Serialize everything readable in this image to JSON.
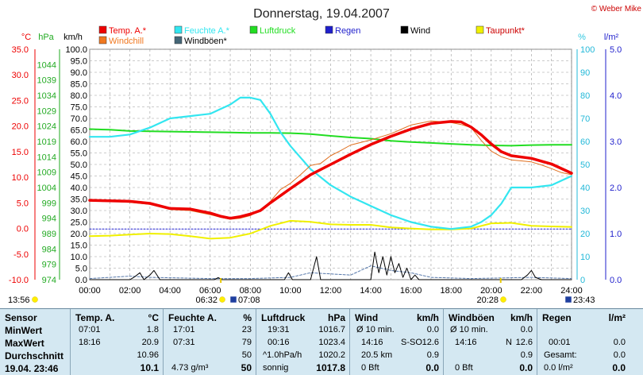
{
  "title": "Donnerstag, 19.04.2007",
  "copyright": "© Weber Mike",
  "legend": [
    {
      "label": "Temp. A.*",
      "color": "#ee0000"
    },
    {
      "label": "Feuchte A.*",
      "color": "#33e6f0"
    },
    {
      "label": "Luftdruck",
      "color": "#22dd22"
    },
    {
      "label": "Regen",
      "color": "#1f1fcc"
    },
    {
      "label": "Wind",
      "color": "#000000"
    },
    {
      "label": "Taupunkt*",
      "color": "#f0f000"
    },
    {
      "label": "Windchill",
      "color": "#f07820"
    },
    {
      "label": "Windböen*",
      "color": "#446677"
    }
  ],
  "axes": {
    "temp_unit": "°C",
    "hpa_unit": "hPa",
    "kmh_unit": "km/h",
    "pct_unit": "%",
    "rain_unit": "l/m²",
    "temp_ticks": [
      "35.0",
      "30.0",
      "25.0",
      "20.0",
      "15.0",
      "10.0",
      "5.0",
      "0.0",
      "-5.0",
      "-10.0"
    ],
    "hpa_ticks": [
      "1044",
      "1039",
      "1034",
      "1029",
      "1024",
      "1019",
      "1014",
      "1009",
      "1004",
      "999",
      "994",
      "989",
      "984",
      "979",
      "974"
    ],
    "kmh_ticks": [
      "100.0",
      "95.0",
      "90.0",
      "85.0",
      "80.0",
      "75.0",
      "70.0",
      "65.0",
      "60.0",
      "55.0",
      "50.0",
      "45.0",
      "40.0",
      "35.0",
      "30.0",
      "25.0",
      "20.0",
      "15.0",
      "10.0",
      "5.0",
      "0.0"
    ],
    "pct_ticks": [
      "100",
      "90",
      "80",
      "70",
      "60",
      "50",
      "40",
      "30",
      "20",
      "10",
      "0"
    ],
    "rain_ticks": [
      "5.0",
      "4.0",
      "3.0",
      "2.0",
      "1.0",
      "0.0"
    ],
    "x_ticks": [
      "00:00",
      "02:00",
      "04:00",
      "06:00",
      "08:00",
      "10:00",
      "12:00",
      "14:00",
      "16:00",
      "18:00",
      "20:00",
      "22:00",
      "24:00"
    ]
  },
  "sun": {
    "sunset_left": "13:56",
    "sunrise": "06:32",
    "moon_rise": "07:08",
    "sunset": "20:28",
    "moon_set": "23:43"
  },
  "chart_data": {
    "type": "line",
    "x_range": [
      0,
      24
    ],
    "ylim": {
      "kmh": [
        0,
        100
      ],
      "temp": [
        -10,
        35
      ],
      "hpa": [
        974,
        1049
      ],
      "pct": [
        0,
        100
      ],
      "rain": [
        0,
        5
      ]
    },
    "series": [
      {
        "name": "Temp. A.*",
        "axis": "temp",
        "x": [
          0,
          1,
          2,
          3,
          4,
          5,
          6,
          6.5,
          7,
          7.5,
          8,
          8.5,
          9,
          10,
          11,
          12,
          13,
          14,
          15,
          16,
          17,
          18,
          18.5,
          19,
          19.5,
          20,
          20.5,
          21,
          22,
          23,
          24
        ],
        "y": [
          5.5,
          5.4,
          5.3,
          4.9,
          3.9,
          3.8,
          3.0,
          2.4,
          2.0,
          2.3,
          2.8,
          3.5,
          5.0,
          7.8,
          10.5,
          12.5,
          14.5,
          16.4,
          18.0,
          19.4,
          20.5,
          20.9,
          20.8,
          19.8,
          18.3,
          16.5,
          15.0,
          14.2,
          13.7,
          12.6,
          10.8
        ]
      },
      {
        "name": "Windchill",
        "axis": "temp",
        "x": [
          0,
          1,
          2,
          3,
          4,
          5,
          6,
          6.5,
          7,
          7.5,
          8,
          8.5,
          9,
          9.5,
          10,
          10.5,
          11,
          11.5,
          12,
          12.5,
          13,
          14,
          15,
          16,
          17,
          18,
          18.5,
          19,
          19.5,
          20,
          20.5,
          21,
          22,
          22.5,
          23,
          23.5,
          24
        ],
        "y": [
          5.5,
          5.3,
          5.1,
          4.7,
          3.7,
          3.5,
          2.7,
          2.2,
          1.8,
          2.0,
          2.5,
          3.6,
          5.3,
          7.6,
          8.8,
          10.5,
          12.3,
          12.7,
          14.2,
          15.2,
          16.3,
          17.3,
          18.5,
          20.2,
          21.0,
          20.7,
          20.3,
          19.7,
          17.2,
          15.1,
          14.0,
          13.4,
          13.0,
          12.4,
          11.7,
          10.9,
          10.5
        ]
      },
      {
        "name": "Feuchte A.*",
        "axis": "pct",
        "x": [
          0,
          1,
          2,
          3,
          4,
          5,
          6,
          6.5,
          7,
          7.5,
          8,
          8.5,
          9,
          9.5,
          10,
          11,
          12,
          13,
          14,
          15,
          16,
          17,
          18,
          19,
          19.5,
          20,
          20.5,
          21,
          22,
          23,
          24
        ],
        "y": [
          62,
          62,
          63,
          66,
          70,
          71,
          72,
          74,
          76,
          79,
          79,
          78,
          72,
          64,
          58,
          48,
          41,
          36,
          32,
          28,
          25,
          23,
          22,
          23,
          25,
          28,
          33,
          40,
          40,
          41,
          45
        ]
      },
      {
        "name": "Luftdruck",
        "axis": "hpa",
        "x": [
          0,
          1,
          2,
          3,
          4,
          5,
          6,
          7,
          8,
          9,
          10,
          11,
          12,
          13,
          14,
          15,
          16,
          17,
          18,
          19,
          20,
          21,
          22,
          23,
          24
        ],
        "y": [
          1023.0,
          1022.8,
          1022.4,
          1022.3,
          1022.2,
          1022.1,
          1022.0,
          1021.9,
          1021.8,
          1021.8,
          1021.7,
          1021.4,
          1020.8,
          1020.3,
          1019.9,
          1019.2,
          1018.8,
          1018.5,
          1018.2,
          1017.9,
          1017.7,
          1017.6,
          1017.8,
          1017.9,
          1017.9
        ]
      },
      {
        "name": "Taupunkt*",
        "axis": "temp",
        "x": [
          0,
          1,
          2,
          3,
          4,
          5,
          6,
          7,
          8,
          9,
          10,
          11,
          12,
          13,
          14,
          15,
          16,
          17,
          18,
          19,
          20,
          21,
          22,
          23,
          24
        ],
        "y": [
          -1.5,
          -1.4,
          -1.2,
          -1.0,
          -1.1,
          -1.5,
          -2.0,
          -1.8,
          -1.0,
          0.5,
          1.5,
          1.3,
          0.8,
          0.7,
          0.7,
          0.2,
          0.0,
          -0.2,
          -0.2,
          0.0,
          1.0,
          1.1,
          0.5,
          0.4,
          0.3
        ]
      },
      {
        "name": "Regen",
        "axis": "rain",
        "x": [
          0,
          24
        ],
        "y": [
          1.1,
          1.1
        ]
      },
      {
        "name": "Wind",
        "axis": "kmh",
        "x": [
          0,
          2,
          2.2,
          2.5,
          2.7,
          3,
          3.2,
          3.5,
          6.2,
          6.4,
          6.6,
          8,
          9.7,
          9.9,
          10.1,
          11,
          11.3,
          11.5,
          12,
          14,
          14.2,
          14.4,
          14.6,
          14.8,
          15,
          15.2,
          15.4,
          15.6,
          15.8,
          16,
          16.2,
          16.4,
          19,
          21.5,
          21.8,
          22,
          22.2,
          22.5,
          24
        ],
        "y": [
          0,
          0,
          1,
          3,
          0,
          2,
          4,
          0,
          0,
          0.9,
          0,
          0,
          0,
          3,
          0,
          0,
          10,
          0,
          0,
          0,
          12,
          3,
          10,
          2,
          10,
          3,
          7,
          1,
          5,
          0,
          2,
          0,
          0,
          0,
          2,
          4,
          1,
          0,
          0
        ]
      },
      {
        "name": "Windböen*",
        "axis": "kmh",
        "x": [
          0,
          2,
          3,
          6,
          8,
          10,
          11,
          13,
          14,
          15,
          16,
          17,
          19,
          22,
          24
        ],
        "y": [
          0.5,
          1.5,
          1,
          0.5,
          0.5,
          1,
          3,
          2,
          6,
          4,
          3,
          1,
          0.5,
          1,
          0.5
        ]
      }
    ]
  },
  "stats": {
    "sensor": {
      "header": "Sensor",
      "rows": [
        "MinWert",
        "MaxWert",
        "Durchschnitt"
      ],
      "now": "19.04. 23:46"
    },
    "temp": {
      "header": "Temp. A.",
      "unit": "°C",
      "min_time": "07:01",
      "min": "1.8",
      "max_time": "18:16",
      "max": "20.9",
      "avg": "10.96",
      "now": "10.1"
    },
    "hum": {
      "header": "Feuchte A.",
      "unit": "%",
      "min_time": "17:01",
      "min": "23",
      "max_time": "07:31",
      "max": "79",
      "avg": "50",
      "abs": "4.73 g/m³",
      "now": "50"
    },
    "press": {
      "header": "Luftdruck",
      "unit": "hPa",
      "min_time": "19:31",
      "min": "1016.7",
      "max_time": "00:16",
      "max": "1023.4",
      "avg_label": "^1.0hPa/h",
      "avg": "1020.2",
      "trend": "sonnig",
      "now": "1017.8"
    },
    "wind": {
      "header": "Wind",
      "unit": "km/h",
      "row1_label": "Ø 10 min.",
      "row1": "0.0",
      "max_time": "14:16",
      "max_dir": "S-SO",
      "max": "12.6",
      "dist": "20.5 km",
      "avg": "0.9",
      "bft": "0 Bft",
      "now": "0.0"
    },
    "gust": {
      "header": "Windböen",
      "unit": "km/h",
      "row1_label": "Ø 10 min.",
      "row1": "0.0",
      "max_time": "14:16",
      "max_dir": "N",
      "max": "12.6",
      "avg": "0.9",
      "bft": "0 Bft",
      "now": "0.0"
    },
    "rain": {
      "header": "Regen",
      "unit": "l/m²",
      "row1_time": "00:01",
      "row1": "0.0",
      "total_label": "Gesamt:",
      "total": "0.0",
      "now_label": "0.0 l/m²",
      "now": "0.0"
    }
  }
}
